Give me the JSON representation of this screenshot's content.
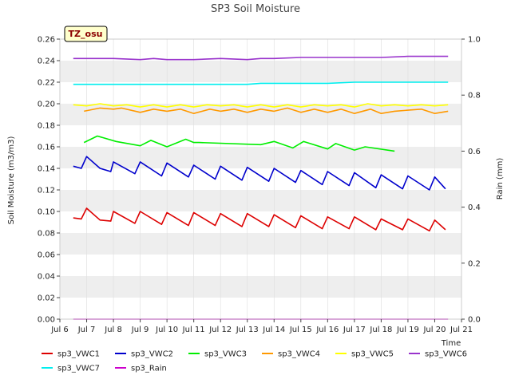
{
  "chart_data": {
    "type": "line",
    "title": "SP3 Soil Moisture",
    "badge": "TZ_osu",
    "xlabel": "Time",
    "ylabel": "Soil Moisture (m3/m3)",
    "y2label": "Rain (mm)",
    "xlim": [
      6,
      21
    ],
    "ylim": [
      0,
      0.26
    ],
    "y2lim": [
      0,
      1.0
    ],
    "x_ticks": [
      6,
      7,
      8,
      9,
      10,
      11,
      12,
      13,
      14,
      15,
      16,
      17,
      18,
      19,
      20,
      21
    ],
    "x_tick_labels": [
      "Jul 6",
      "Jul 7",
      "Jul 8",
      "Jul 9",
      "Jul 10",
      "Jul 11",
      "Jul 12",
      "Jul 13",
      "Jul 14",
      "Jul 15",
      "Jul 16",
      "Jul 17",
      "Jul 18",
      "Jul 19",
      "Jul 20",
      "Jul 21"
    ],
    "y_ticks": [
      0.0,
      0.02,
      0.04,
      0.06,
      0.08,
      0.1,
      0.12,
      0.14,
      0.16,
      0.18,
      0.2,
      0.22,
      0.24,
      0.26
    ],
    "y_tick_labels": [
      "0.00",
      "0.02",
      "0.04",
      "0.06",
      "0.08",
      "0.10",
      "0.12",
      "0.14",
      "0.16",
      "0.18",
      "0.20",
      "0.22",
      "0.24",
      "0.26"
    ],
    "y2_ticks": [
      0.0,
      0.2,
      0.4,
      0.6,
      0.8,
      1.0
    ],
    "y2_tick_labels": [
      "0.0",
      "0.2",
      "0.4",
      "0.6",
      "0.8",
      "1.0"
    ],
    "background_bands": true,
    "legend_position": "bottom",
    "series": [
      {
        "name": "sp3_VWC1",
        "color": "#dd0000",
        "axis": "left",
        "x": [
          6.5,
          6.8,
          7.0,
          7.5,
          7.9,
          8.0,
          8.8,
          9.0,
          9.8,
          10.0,
          10.8,
          11.0,
          11.8,
          12.0,
          12.8,
          13.0,
          13.8,
          14.0,
          14.8,
          15.0,
          15.8,
          16.0,
          16.8,
          17.0,
          17.8,
          18.0,
          18.8,
          19.0,
          19.8,
          20.0,
          20.4
        ],
        "y": [
          0.094,
          0.093,
          0.103,
          0.092,
          0.091,
          0.1,
          0.089,
          0.1,
          0.088,
          0.099,
          0.087,
          0.099,
          0.087,
          0.098,
          0.086,
          0.098,
          0.086,
          0.097,
          0.085,
          0.096,
          0.084,
          0.095,
          0.084,
          0.095,
          0.083,
          0.093,
          0.083,
          0.093,
          0.082,
          0.092,
          0.083
        ]
      },
      {
        "name": "sp3_VWC2",
        "color": "#0000cc",
        "axis": "left",
        "x": [
          6.5,
          6.8,
          7.0,
          7.5,
          7.9,
          8.0,
          8.8,
          9.0,
          9.8,
          10.0,
          10.8,
          11.0,
          11.8,
          12.0,
          12.8,
          13.0,
          13.8,
          14.0,
          14.8,
          15.0,
          15.8,
          16.0,
          16.8,
          17.0,
          17.8,
          18.0,
          18.8,
          19.0,
          19.8,
          20.0,
          20.4
        ],
        "y": [
          0.142,
          0.14,
          0.151,
          0.14,
          0.137,
          0.146,
          0.135,
          0.146,
          0.133,
          0.145,
          0.132,
          0.143,
          0.13,
          0.142,
          0.129,
          0.141,
          0.128,
          0.14,
          0.127,
          0.138,
          0.125,
          0.137,
          0.124,
          0.136,
          0.122,
          0.134,
          0.121,
          0.133,
          0.12,
          0.132,
          0.121
        ]
      },
      {
        "name": "sp3_VWC3",
        "color": "#00ee00",
        "axis": "left",
        "x": [
          6.9,
          7.4,
          8.1,
          9.0,
          9.4,
          10.0,
          10.7,
          11.0,
          11.2,
          13.5,
          14.0,
          14.7,
          15.1,
          16.0,
          16.3,
          17.0,
          17.4,
          18.5
        ],
        "y": [
          0.164,
          0.17,
          0.165,
          0.161,
          0.166,
          0.16,
          0.167,
          0.164,
          0.164,
          0.162,
          0.165,
          0.159,
          0.165,
          0.158,
          0.163,
          0.157,
          0.16,
          0.156
        ]
      },
      {
        "name": "sp3_VWC4",
        "color": "#ff9900",
        "axis": "left",
        "x": [
          6.9,
          7.5,
          8.0,
          8.3,
          9.0,
          9.5,
          10.0,
          10.5,
          11.0,
          11.6,
          12.0,
          12.5,
          13.0,
          13.5,
          14.0,
          14.5,
          15.0,
          15.5,
          16.0,
          16.5,
          17.0,
          17.6,
          18.0,
          18.5,
          19.0,
          19.5,
          20.0,
          20.5
        ],
        "y": [
          0.193,
          0.196,
          0.195,
          0.196,
          0.192,
          0.195,
          0.193,
          0.195,
          0.191,
          0.195,
          0.193,
          0.195,
          0.192,
          0.195,
          0.193,
          0.196,
          0.192,
          0.195,
          0.192,
          0.195,
          0.191,
          0.195,
          0.191,
          0.193,
          0.194,
          0.195,
          0.191,
          0.193
        ]
      },
      {
        "name": "sp3_VWC5",
        "color": "#ffff00",
        "axis": "left",
        "x": [
          6.5,
          7.0,
          7.5,
          8.0,
          8.5,
          9.0,
          9.5,
          10.0,
          10.5,
          11.0,
          11.5,
          12.0,
          12.5,
          13.0,
          13.5,
          14.0,
          14.5,
          15.0,
          15.5,
          16.0,
          16.5,
          17.0,
          17.5,
          18.0,
          18.5,
          19.0,
          19.5,
          20.0,
          20.5
        ],
        "y": [
          0.199,
          0.198,
          0.2,
          0.198,
          0.199,
          0.197,
          0.199,
          0.197,
          0.199,
          0.197,
          0.199,
          0.198,
          0.199,
          0.197,
          0.199,
          0.197,
          0.199,
          0.197,
          0.199,
          0.198,
          0.199,
          0.197,
          0.2,
          0.198,
          0.199,
          0.198,
          0.199,
          0.198,
          0.199
        ]
      },
      {
        "name": "sp3_VWC6",
        "color": "#9933cc",
        "axis": "left",
        "x": [
          6.5,
          8.0,
          9.0,
          9.5,
          10.0,
          11.0,
          12.0,
          13.0,
          13.5,
          14.0,
          15.0,
          16.0,
          17.0,
          18.0,
          19.0,
          20.0,
          20.5
        ],
        "y": [
          0.242,
          0.242,
          0.241,
          0.242,
          0.241,
          0.241,
          0.242,
          0.241,
          0.242,
          0.242,
          0.243,
          0.243,
          0.243,
          0.243,
          0.244,
          0.244,
          0.244
        ]
      },
      {
        "name": "sp3_VWC7",
        "color": "#00eeee",
        "axis": "left",
        "x": [
          6.5,
          8.0,
          9.0,
          10.0,
          11.0,
          12.0,
          13.0,
          13.5,
          14.0,
          15.0,
          16.0,
          17.0,
          18.0,
          19.0,
          20.0,
          20.5
        ],
        "y": [
          0.218,
          0.218,
          0.218,
          0.218,
          0.218,
          0.218,
          0.218,
          0.219,
          0.219,
          0.219,
          0.219,
          0.22,
          0.22,
          0.22,
          0.22,
          0.22
        ]
      },
      {
        "name": "sp3_Rain",
        "color": "#cc00cc",
        "axis": "right",
        "x": [
          6.5,
          20.5
        ],
        "y": [
          0.0,
          0.0
        ]
      }
    ]
  }
}
